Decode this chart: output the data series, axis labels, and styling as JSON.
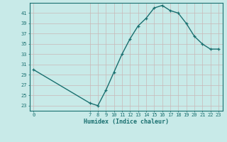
{
  "x": [
    0,
    7,
    8,
    9,
    10,
    11,
    12,
    13,
    14,
    15,
    16,
    17,
    18,
    19,
    20,
    21,
    22,
    23
  ],
  "y": [
    30,
    23.5,
    23,
    26,
    29.5,
    33,
    36,
    38.5,
    40,
    42,
    42.5,
    41.5,
    41,
    39,
    36.5,
    35,
    34,
    34
  ],
  "xlabel": "Humidex (Indice chaleur)",
  "xticks": [
    0,
    7,
    8,
    9,
    10,
    11,
    12,
    13,
    14,
    15,
    16,
    17,
    18,
    19,
    20,
    21,
    22,
    23
  ],
  "yticks": [
    23,
    25,
    27,
    29,
    31,
    33,
    35,
    37,
    39,
    41
  ],
  "ylim": [
    22,
    43
  ],
  "xlim": [
    -0.5,
    23.5
  ],
  "line_color": "#1a7070",
  "marker_color": "#1a7070",
  "bg_color": "#c8eae8",
  "grid_color": "#c8b8b8",
  "title_color": "#1a7070",
  "spine_color": "#1a7070"
}
